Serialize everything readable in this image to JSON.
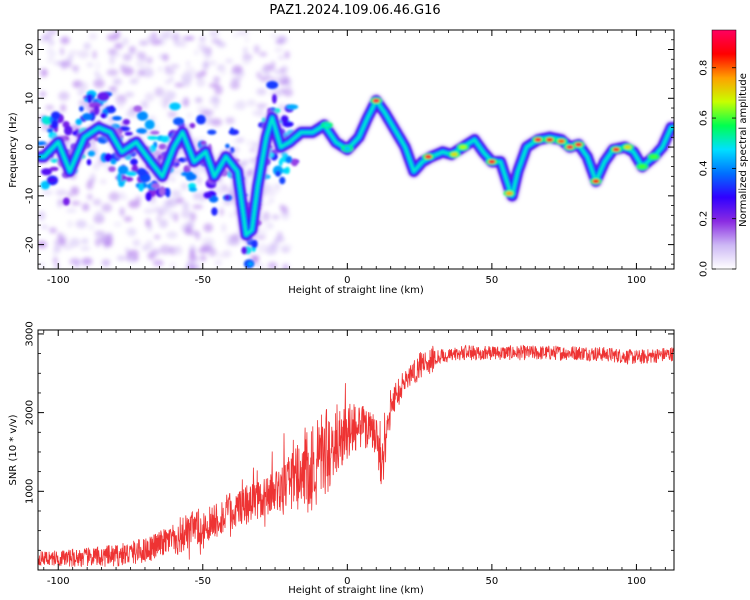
{
  "title": "PAZ1.2024.109.06.46.G16",
  "chart_data": [
    {
      "type": "heatmap",
      "xlabel": "Height of straight line (km)",
      "ylabel": "Frequency (Hz)",
      "xlim": [
        -107,
        113
      ],
      "ylim": [
        -25,
        24
      ],
      "xticks": [
        -100,
        -50,
        0,
        50,
        100
      ],
      "yticks": [
        -20,
        -10,
        0,
        10,
        20
      ],
      "colorbar": {
        "label": "Normalized spectral amplitude",
        "range": [
          0,
          0.95
        ],
        "ticks": [
          0.0,
          0.2,
          0.4,
          0.6,
          0.8
        ],
        "colors": [
          "#ffffff",
          "#cdb8f5",
          "#8a2be2",
          "#3000ff",
          "#0070ff",
          "#00e0ff",
          "#00ff50",
          "#c8ff00",
          "#ffa000",
          "#ff0000",
          "#ff0060"
        ]
      },
      "ridge": [
        {
          "x": -105,
          "y": -2
        },
        {
          "x": -100,
          "y": 1
        },
        {
          "x": -96,
          "y": -5
        },
        {
          "x": -91,
          "y": 2
        },
        {
          "x": -86,
          "y": 4
        },
        {
          "x": -82,
          "y": 3
        },
        {
          "x": -78,
          "y": -1
        },
        {
          "x": -73,
          "y": 1
        },
        {
          "x": -68,
          "y": -3
        },
        {
          "x": -64,
          "y": -6
        },
        {
          "x": -60,
          "y": 0
        },
        {
          "x": -57,
          "y": 3
        },
        {
          "x": -53,
          "y": -3
        },
        {
          "x": -49,
          "y": -1
        },
        {
          "x": -46,
          "y": -6
        },
        {
          "x": -42,
          "y": -2
        },
        {
          "x": -38,
          "y": -5
        },
        {
          "x": -35,
          "y": -18
        },
        {
          "x": -33,
          "y": -17
        },
        {
          "x": -31,
          "y": -8
        },
        {
          "x": -28,
          "y": 2
        },
        {
          "x": -26,
          "y": 6
        },
        {
          "x": -23,
          "y": 0
        },
        {
          "x": -20,
          "y": 1
        },
        {
          "x": -16,
          "y": 3
        },
        {
          "x": -12,
          "y": 3
        },
        {
          "x": -8,
          "y": 4.5
        },
        {
          "x": -4,
          "y": 1
        },
        {
          "x": 0,
          "y": -0.5
        },
        {
          "x": 4,
          "y": 2
        },
        {
          "x": 7,
          "y": 6
        },
        {
          "x": 10,
          "y": 9.5
        },
        {
          "x": 13,
          "y": 7
        },
        {
          "x": 17,
          "y": 3
        },
        {
          "x": 20,
          "y": 0
        },
        {
          "x": 23,
          "y": -5
        },
        {
          "x": 26,
          "y": -3
        },
        {
          "x": 29,
          "y": -2
        },
        {
          "x": 33,
          "y": -1
        },
        {
          "x": 36,
          "y": -1.5
        },
        {
          "x": 40,
          "y": 0
        },
        {
          "x": 44,
          "y": 1.5
        },
        {
          "x": 47,
          "y": -1
        },
        {
          "x": 50,
          "y": -3
        },
        {
          "x": 53,
          "y": -3
        },
        {
          "x": 56,
          "y": -8.5
        },
        {
          "x": 57,
          "y": -10
        },
        {
          "x": 59,
          "y": -5
        },
        {
          "x": 62,
          "y": 0
        },
        {
          "x": 66,
          "y": 1.5
        },
        {
          "x": 70,
          "y": 2
        },
        {
          "x": 74,
          "y": 1.5
        },
        {
          "x": 77,
          "y": 0
        },
        {
          "x": 80,
          "y": 0.5
        },
        {
          "x": 83,
          "y": -2
        },
        {
          "x": 86,
          "y": -7
        },
        {
          "x": 89,
          "y": -3
        },
        {
          "x": 92,
          "y": -0.5
        },
        {
          "x": 96,
          "y": 0
        },
        {
          "x": 99,
          "y": -1
        },
        {
          "x": 102,
          "y": -4
        },
        {
          "x": 106,
          "y": -2
        },
        {
          "x": 109,
          "y": 0
        },
        {
          "x": 112,
          "y": 4
        }
      ],
      "hotspots": [
        {
          "x": 10,
          "y": 9.5,
          "v": 0.92
        },
        {
          "x": 28,
          "y": -2,
          "v": 0.9
        },
        {
          "x": 37,
          "y": -1.5,
          "v": 0.7
        },
        {
          "x": 40,
          "y": 0,
          "v": 0.65
        },
        {
          "x": 50,
          "y": -3,
          "v": 0.9
        },
        {
          "x": 56,
          "y": -9.5,
          "v": 0.75
        },
        {
          "x": 66,
          "y": 1.5,
          "v": 0.9
        },
        {
          "x": 70,
          "y": 1.5,
          "v": 0.88
        },
        {
          "x": 74,
          "y": 1.2,
          "v": 0.8
        },
        {
          "x": 77,
          "y": 0,
          "v": 0.92
        },
        {
          "x": 80,
          "y": 0.5,
          "v": 0.9
        },
        {
          "x": 86,
          "y": -7,
          "v": 0.85
        },
        {
          "x": 93,
          "y": -0.5,
          "v": 0.9
        },
        {
          "x": 97,
          "y": 0,
          "v": 0.7
        },
        {
          "x": 102,
          "y": -4,
          "v": 0.6
        },
        {
          "x": 106,
          "y": -2,
          "v": 0.6
        },
        {
          "x": -7,
          "y": 4.5,
          "v": 0.5
        },
        {
          "x": 0,
          "y": -0.3,
          "v": 0.45
        }
      ]
    },
    {
      "type": "line",
      "xlabel": "Height of straight line (km)",
      "ylabel": "SNR (10 * v/v)",
      "xlim": [
        -107,
        113
      ],
      "ylim": [
        0,
        3050
      ],
      "xticks": [
        -100,
        -50,
        0,
        50,
        100
      ],
      "yticks": [
        1000,
        2000,
        3000
      ],
      "color": "#ee3333",
      "series": [
        {
          "x": [
            -107,
            -100,
            -90,
            -80,
            -70,
            -60,
            -50,
            -40,
            -30,
            -25,
            -20,
            -15,
            -10,
            -5,
            0,
            5,
            10,
            12,
            15,
            20,
            25,
            30,
            35,
            40,
            50,
            60,
            70,
            80,
            90,
            100,
            113
          ],
          "values": [
            150,
            150,
            160,
            180,
            250,
            400,
            550,
            750,
            900,
            1000,
            1100,
            1200,
            1400,
            1600,
            1750,
            1850,
            1700,
            1250,
            2100,
            2400,
            2600,
            2700,
            2720,
            2760,
            2760,
            2760,
            2760,
            2760,
            2740,
            2700,
            2750
          ]
        }
      ]
    }
  ]
}
